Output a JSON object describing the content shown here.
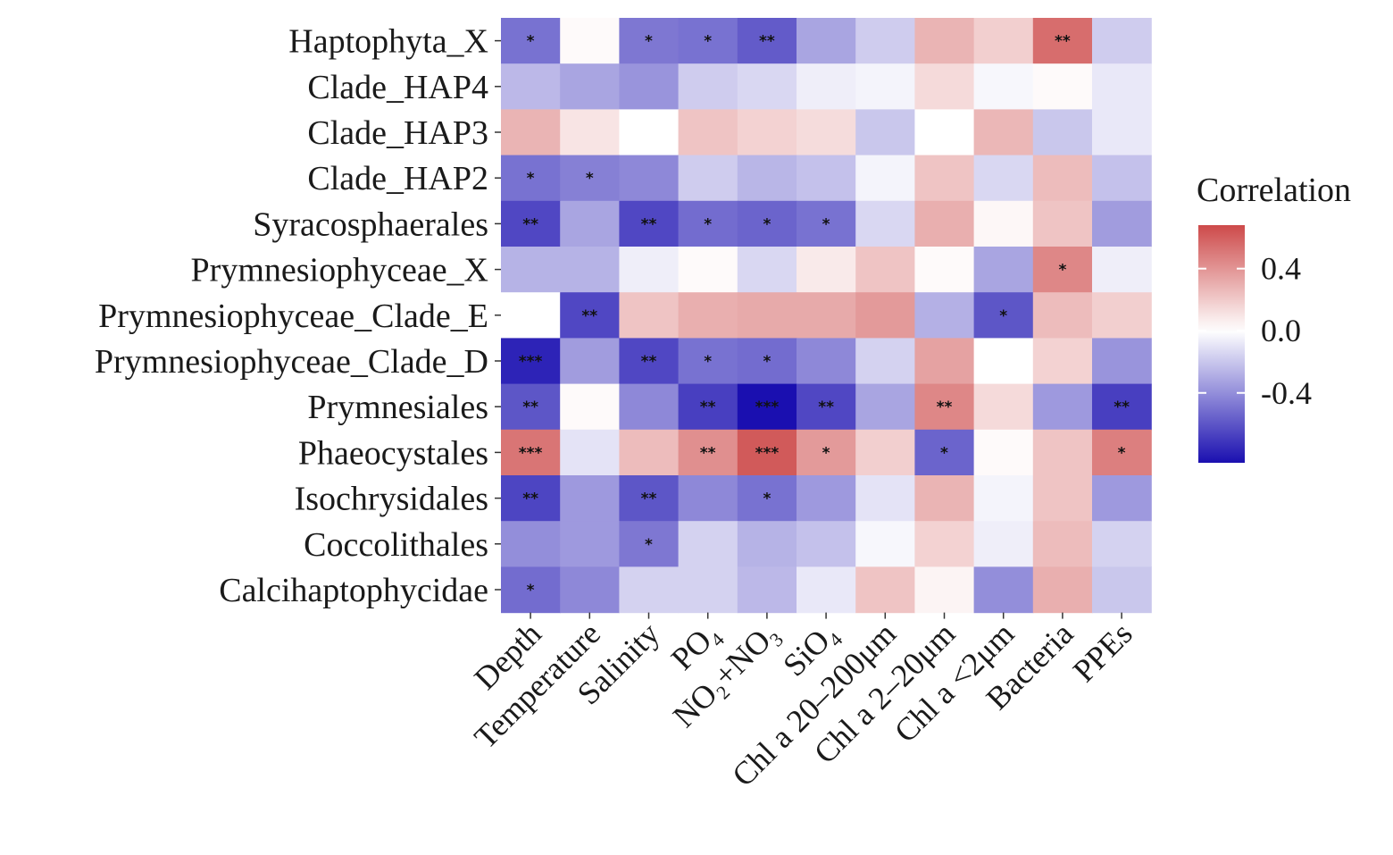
{
  "chart_data": {
    "type": "heatmap",
    "rows": [
      "Haptophyta_X",
      "Clade_HAP4",
      "Clade_HAP3",
      "Clade_HAP2",
      "Syracosphaerales",
      "Prymnesiophyceae_X",
      "Prymnesiophyceae_Clade_E",
      "Prymnesiophyceae_Clade_D",
      "Prymnesiales",
      "Phaeocystales",
      "Isochrysidales",
      "Coccolithales",
      "Calcihaptophycidae"
    ],
    "columns": [
      {
        "base": "Depth",
        "sub": ""
      },
      {
        "base": "Temperature",
        "sub": ""
      },
      {
        "base": "Salinity",
        "sub": ""
      },
      {
        "base": "PO",
        "sub": "4"
      },
      {
        "base": "NO₂+NO",
        "sub": "3"
      },
      {
        "base": "SiO",
        "sub": "4"
      },
      {
        "base": "Chl a 20–200μm",
        "sub": ""
      },
      {
        "base": "Chl a 2–20μm",
        "sub": ""
      },
      {
        "base": "Chl a <2μm",
        "sub": ""
      },
      {
        "base": "Bacteria",
        "sub": ""
      },
      {
        "base": "PPEs",
        "sub": ""
      }
    ],
    "values": [
      [
        -0.5,
        0.02,
        -0.48,
        -0.5,
        -0.58,
        -0.32,
        -0.18,
        0.28,
        0.18,
        0.55,
        -0.18
      ],
      [
        -0.25,
        -0.32,
        -0.38,
        -0.18,
        -0.14,
        -0.06,
        -0.04,
        0.14,
        -0.03,
        0.02,
        -0.08
      ],
      [
        0.28,
        0.1,
        0.0,
        0.22,
        0.17,
        0.13,
        -0.2,
        0.0,
        0.27,
        -0.2,
        -0.08
      ],
      [
        -0.5,
        -0.45,
        -0.42,
        -0.18,
        -0.26,
        -0.22,
        -0.04,
        0.22,
        -0.14,
        0.25,
        -0.22
      ],
      [
        -0.65,
        -0.32,
        -0.65,
        -0.52,
        -0.55,
        -0.5,
        -0.14,
        0.3,
        0.03,
        0.22,
        -0.35
      ],
      [
        -0.27,
        -0.27,
        -0.06,
        0.02,
        -0.14,
        0.08,
        0.22,
        0.02,
        -0.32,
        0.45,
        -0.06
      ],
      [
        0.0,
        -0.65,
        0.22,
        0.3,
        0.32,
        0.32,
        0.38,
        -0.28,
        -0.6,
        0.25,
        0.18
      ],
      [
        -0.78,
        -0.35,
        -0.65,
        -0.5,
        -0.52,
        -0.42,
        -0.16,
        0.35,
        0.0,
        0.17,
        -0.38
      ],
      [
        -0.6,
        0.02,
        -0.42,
        -0.68,
        -0.85,
        -0.65,
        -0.32,
        0.45,
        0.14,
        -0.36,
        -0.68
      ],
      [
        0.52,
        -0.1,
        0.25,
        0.42,
        0.62,
        0.38,
        0.18,
        -0.55,
        0.02,
        0.22,
        0.48
      ],
      [
        -0.66,
        -0.36,
        -0.6,
        -0.42,
        -0.5,
        -0.36,
        -0.1,
        0.28,
        -0.04,
        0.22,
        -0.36
      ],
      [
        -0.4,
        -0.36,
        -0.48,
        -0.16,
        -0.27,
        -0.22,
        -0.03,
        0.17,
        -0.06,
        0.25,
        -0.16
      ],
      [
        -0.52,
        -0.42,
        -0.16,
        -0.16,
        -0.25,
        -0.08,
        0.22,
        0.04,
        -0.4,
        0.3,
        -0.2
      ]
    ],
    "significance": [
      [
        "*",
        "",
        "*",
        "*",
        "**",
        "",
        "",
        "",
        "",
        "**",
        ""
      ],
      [
        "",
        "",
        "",
        "",
        "",
        "",
        "",
        "",
        "",
        "",
        ""
      ],
      [
        "",
        "",
        "",
        "",
        "",
        "",
        "",
        "",
        "",
        "",
        ""
      ],
      [
        "*",
        "*",
        "",
        "",
        "",
        "",
        "",
        "",
        "",
        "",
        ""
      ],
      [
        "**",
        "",
        "**",
        "*",
        "*",
        "*",
        "",
        "",
        "",
        "",
        ""
      ],
      [
        "",
        "",
        "",
        "",
        "",
        "",
        "",
        "",
        "",
        "*",
        ""
      ],
      [
        "",
        "**",
        "",
        "",
        "",
        "",
        "",
        "",
        "*",
        "",
        ""
      ],
      [
        "***",
        "",
        "**",
        "*",
        "*",
        "",
        "",
        "",
        "",
        "",
        ""
      ],
      [
        "**",
        "",
        "",
        "**",
        "***",
        "**",
        "",
        "**",
        "",
        "",
        "**"
      ],
      [
        "***",
        "",
        "",
        "**",
        "***",
        "*",
        "",
        "*",
        "",
        "",
        "*"
      ],
      [
        "**",
        "",
        "**",
        "",
        "*",
        "",
        "",
        "",
        "",
        "",
        ""
      ],
      [
        "",
        "",
        "*",
        "",
        "",
        "",
        "",
        "",
        "",
        "",
        ""
      ],
      [
        "*",
        "",
        "",
        "",
        "",
        "",
        "",
        "",
        "",
        "",
        ""
      ]
    ],
    "legend": {
      "title": "Correlation",
      "ticks": [
        {
          "value": 0.4,
          "label": "0.4"
        },
        {
          "value": 0.0,
          "label": "0.0"
        },
        {
          "value": -0.4,
          "label": "-0.4"
        }
      ],
      "range": [
        -0.85,
        0.68
      ],
      "placement": "right"
    },
    "colors": {
      "low": "#1a0fb0",
      "mid": "#ffffff",
      "high": "#cd4a4a"
    }
  }
}
